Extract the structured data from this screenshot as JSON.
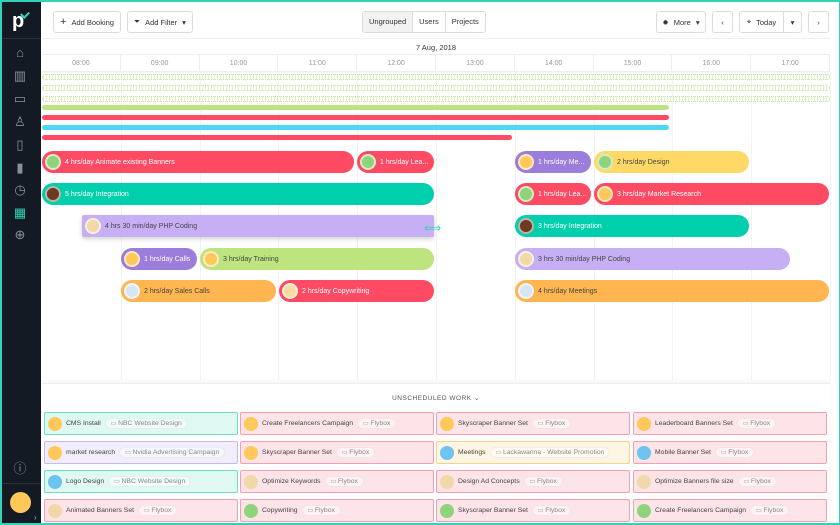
{
  "toolbar": {
    "add_booking": "Add Booking",
    "add_filter": "Add Filter",
    "views": [
      "Ungrouped",
      "Users",
      "Projects"
    ],
    "more": "More",
    "today": "Today"
  },
  "date": "7 Aug, 2018",
  "hours": [
    "08:00",
    "09:00",
    "10:00",
    "11:00",
    "12:00",
    "13:00",
    "14:00",
    "15:00",
    "16:00",
    "17:00"
  ],
  "colors": {
    "red": "#ff4a63",
    "teal": "#00cfae",
    "purple": "#9b7ddb",
    "lavender": "#c7aff5",
    "green": "#bde47f",
    "yellow": "#ffd965",
    "orange": "#ffb550",
    "blue": "#4bd8f5",
    "accent": "#2fd3b8"
  },
  "bookings": [
    {
      "label": "4 hrs/day Animate existing Banners"
    },
    {
      "label": "1 hrs/day Lea..."
    },
    {
      "label": "1 hrs/day Me..."
    },
    {
      "label": "2 hrs/day Design"
    },
    {
      "label": "5 hrs/day Integration"
    },
    {
      "label": "1 hrs/day Lea..."
    },
    {
      "label": "3 hrs/day Market Research"
    },
    {
      "label": "4 hrs 30 min/day PHP Coding"
    },
    {
      "label": "3 hrs/day Integration"
    },
    {
      "label": "1 hrs/day Calls"
    },
    {
      "label": "3 hrs/day Training"
    },
    {
      "label": "3 hrs 30 min/day PHP Coding"
    },
    {
      "label": "2 hrs/day Sales Calls"
    },
    {
      "label": "2 hrs/day Copywriting"
    },
    {
      "label": "4 hrs/day Meetings"
    }
  ],
  "unscheduled": {
    "title": "UNSCHEDULED WORK",
    "cards": [
      {
        "task": "CMS Install",
        "project": "NBC Website Design"
      },
      {
        "task": "Create Freelancers Campaign",
        "project": "Flybox"
      },
      {
        "task": "Skyscraper Banner Set",
        "project": "Flybox"
      },
      {
        "task": "Leaderboard Banners Set",
        "project": "Flybox"
      },
      {
        "task": "market research",
        "project": "Nvidia Advertising Campaign"
      },
      {
        "task": "Skyscraper Banner Set",
        "project": "Flybox"
      },
      {
        "task": "Meetings",
        "project": "Lackawanna - Website Promotion"
      },
      {
        "task": "Mobile Banner Set",
        "project": "Flybox"
      },
      {
        "task": "Logo Design",
        "project": "NBC Website Design"
      },
      {
        "task": "Optimize Keywords",
        "project": "Flybox"
      },
      {
        "task": "Design Ad Concepts",
        "project": "Flybox"
      },
      {
        "task": "Optimize Banners file size",
        "project": "Flybox"
      },
      {
        "task": "Animated Banners Set",
        "project": "Flybox"
      },
      {
        "task": "Copywriting",
        "project": "Flybox"
      },
      {
        "task": "Skyscraper Banner Set",
        "project": "Flybox"
      },
      {
        "task": "Create Freelancers Campaign",
        "project": "Flybox"
      }
    ]
  }
}
